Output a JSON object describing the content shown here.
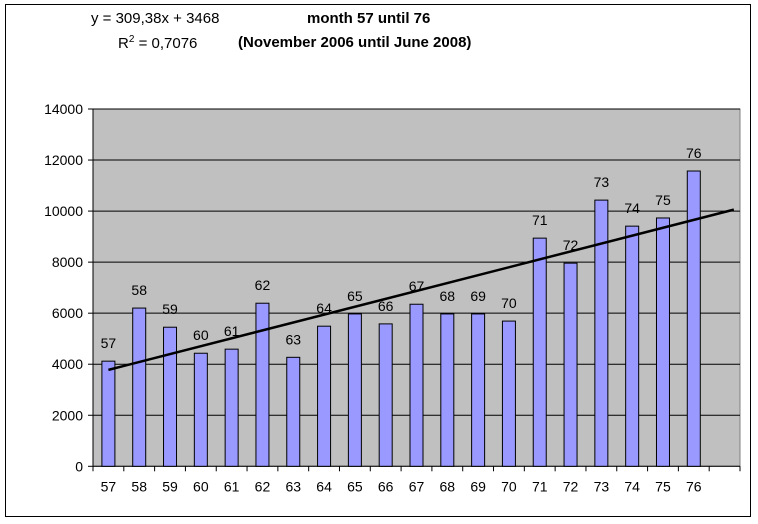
{
  "chart_data": {
    "type": "bar",
    "title": "month 57 until 76",
    "subtitle": "(November 2006 until June 2008)",
    "trendline": {
      "equation": "y = 309,38x + 3468",
      "r2_prefix": "R",
      "r2_sup": "2",
      "r2_value": " = 0,7076",
      "slope": 309.38,
      "intercept": 3468,
      "x_extend_forward": 1.3
    },
    "categories": [
      "57",
      "58",
      "59",
      "60",
      "61",
      "62",
      "63",
      "64",
      "65",
      "66",
      "67",
      "68",
      "69",
      "70",
      "71",
      "72",
      "73",
      "74",
      "75",
      "76"
    ],
    "values": [
      4120,
      6200,
      5450,
      4430,
      4590,
      6390,
      4270,
      5490,
      5970,
      5580,
      6350,
      5970,
      5970,
      5690,
      8940,
      7960,
      10430,
      9410,
      9730,
      11570
    ],
    "data_labels": [
      "57",
      "58",
      "59",
      "60",
      "61",
      "62",
      "63",
      "64",
      "65",
      "66",
      "67",
      "68",
      "69",
      "70",
      "71",
      "72",
      "73",
      "74",
      "75",
      "76"
    ],
    "ylim": [
      0,
      14000
    ],
    "yticks": [
      "0",
      "2000",
      "4000",
      "6000",
      "8000",
      "10000",
      "12000",
      "14000"
    ],
    "grid": true,
    "xlabel": "",
    "ylabel": "",
    "colors": {
      "bar": "#9999ff",
      "plot_bg": "#c0c0c0",
      "trend": "#000000"
    }
  }
}
